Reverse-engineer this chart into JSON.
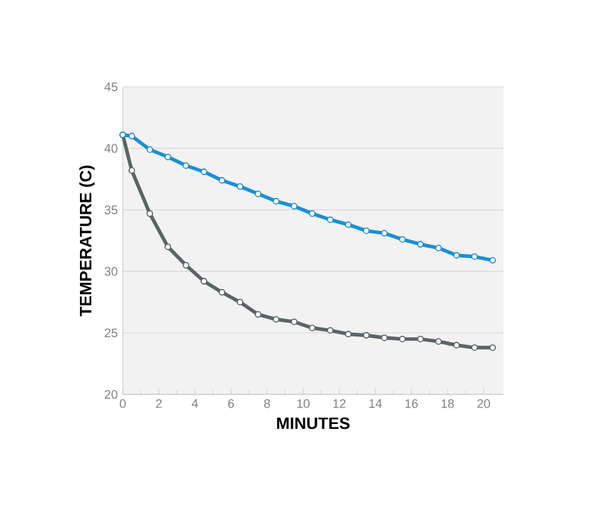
{
  "chart_data": {
    "type": "line",
    "xlabel": "MINUTES",
    "ylabel": "TEMPERATURE (C)",
    "xlim": [
      0,
      21.1
    ],
    "ylim": [
      20,
      45
    ],
    "xticks": [
      0,
      2,
      4,
      6,
      8,
      10,
      12,
      14,
      16,
      18,
      20
    ],
    "yticks": [
      20,
      25,
      30,
      35,
      40,
      45
    ],
    "grid": "y",
    "marker": "circle",
    "x": [
      0,
      0.5,
      1.5,
      2.5,
      3.5,
      4.5,
      5.5,
      6.5,
      7.5,
      8.5,
      9.5,
      10.5,
      11.5,
      12.5,
      13.5,
      14.5,
      15.5,
      16.5,
      17.5,
      18.5,
      19.5,
      20.5
    ],
    "series": [
      {
        "color": "#1b8fd2",
        "values": [
          41.1,
          41.0,
          39.9,
          39.3,
          38.6,
          38.1,
          37.4,
          36.9,
          36.3,
          35.7,
          35.3,
          34.7,
          34.2,
          33.8,
          33.3,
          33.1,
          32.6,
          32.2,
          31.9,
          31.3,
          31.2,
          30.9
        ]
      },
      {
        "color": "#5b6366",
        "values": [
          41.1,
          38.2,
          34.7,
          32.0,
          30.5,
          29.2,
          28.3,
          27.5,
          26.5,
          26.1,
          25.9,
          25.4,
          25.2,
          24.9,
          24.8,
          24.6,
          24.5,
          24.5,
          24.3,
          24.0,
          23.8,
          23.8
        ]
      }
    ]
  }
}
